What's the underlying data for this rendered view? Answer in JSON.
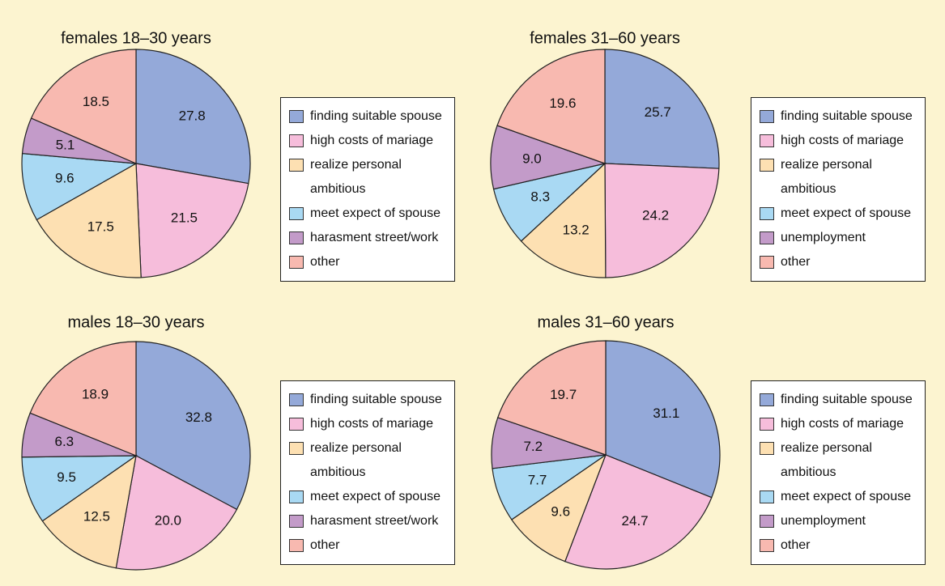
{
  "chart_data": [
    {
      "type": "pie",
      "title": "females 18–30 years",
      "categories": [
        "finding suitable spouse",
        "high costs of mariage",
        "realize personal ambitious",
        "meet expect of spouse",
        "harasment street/work",
        "other"
      ],
      "values": [
        27.8,
        21.5,
        17.5,
        9.6,
        5.1,
        18.5
      ],
      "value_labels": [
        "27.8",
        "21.5",
        "17.5",
        "9.6",
        "5.1",
        "18.5"
      ],
      "colors": [
        "#94a9d9",
        "#f6bddb",
        "#fde0b2",
        "#a9d9f3",
        "#c39bc9",
        "#f8b9b0"
      ]
    },
    {
      "type": "pie",
      "title": "females 31–60 years",
      "categories": [
        "finding suitable spouse",
        "high costs of mariage",
        "realize personal ambitious",
        "meet expect of spouse",
        "unemployment",
        "other"
      ],
      "values": [
        25.7,
        24.2,
        13.2,
        8.3,
        9.0,
        19.6
      ],
      "value_labels": [
        "25.7",
        "24.2",
        "13.2",
        "8.3",
        "9.0",
        "19.6"
      ],
      "colors": [
        "#94a9d9",
        "#f6bddb",
        "#fde0b2",
        "#a9d9f3",
        "#c39bc9",
        "#f8b9b0"
      ]
    },
    {
      "type": "pie",
      "title": "males 18–30 years",
      "categories": [
        "finding suitable spouse",
        "high costs of mariage",
        "realize personal ambitious",
        "meet expect of spouse",
        "harasment street/work",
        "other"
      ],
      "values": [
        32.8,
        20.0,
        12.5,
        9.5,
        6.3,
        18.9
      ],
      "value_labels": [
        "32.8",
        "20.0",
        "12.5",
        "9.5",
        "6.3",
        "18.9"
      ],
      "colors": [
        "#94a9d9",
        "#f6bddb",
        "#fde0b2",
        "#a9d9f3",
        "#c39bc9",
        "#f8b9b0"
      ]
    },
    {
      "type": "pie",
      "title": "males 31–60 years",
      "categories": [
        "finding suitable spouse",
        "high costs of mariage",
        "realize personal ambitious",
        "meet expect of spouse",
        "unemployment",
        "other"
      ],
      "values": [
        31.1,
        24.7,
        9.6,
        7.7,
        7.2,
        19.7
      ],
      "value_labels": [
        "31.1",
        "24.7",
        "9.6",
        "7.7",
        "7.2",
        "19.7"
      ],
      "colors": [
        "#94a9d9",
        "#f6bddb",
        "#fde0b2",
        "#a9d9f3",
        "#c39bc9",
        "#f8b9b0"
      ]
    }
  ]
}
